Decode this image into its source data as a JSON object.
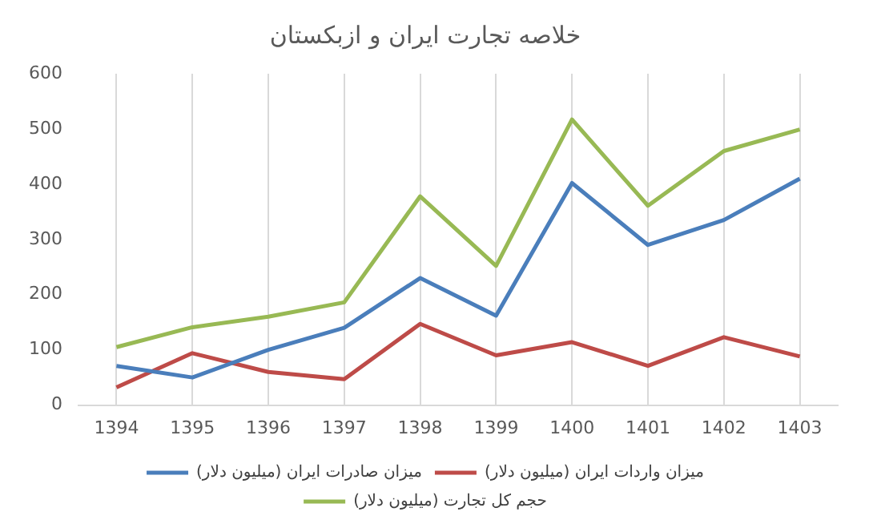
{
  "chart_data": {
    "type": "line",
    "title": "خلاصه تجارت ایران و ازبکستان",
    "categories": [
      "1394",
      "1395",
      "1396",
      "1397",
      "1398",
      "1399",
      "1400",
      "1401",
      "1402",
      "1403"
    ],
    "series": [
      {
        "name": "میزان صادرات ایران (میلیون دلار)",
        "color": "#4a7ebb",
        "values": [
          71,
          50,
          100,
          140,
          230,
          162,
          402,
          290,
          335,
          410
        ]
      },
      {
        "name": "میزان واردات ایران (میلیون دلار)",
        "color": "#be4b48",
        "values": [
          32,
          94,
          60,
          47,
          147,
          90,
          114,
          71,
          123,
          88
        ]
      },
      {
        "name": "حجم کل تجارت (میلیون دلار)",
        "color": "#98b954",
        "values": [
          105,
          141,
          160,
          186,
          378,
          252,
          517,
          361,
          460,
          499
        ]
      }
    ],
    "ylim": [
      0,
      600
    ],
    "yticks": [
      0,
      100,
      200,
      300,
      400,
      500,
      600
    ],
    "grid": "x",
    "legend": "bottom",
    "marker": "none",
    "line_style": "solid"
  }
}
